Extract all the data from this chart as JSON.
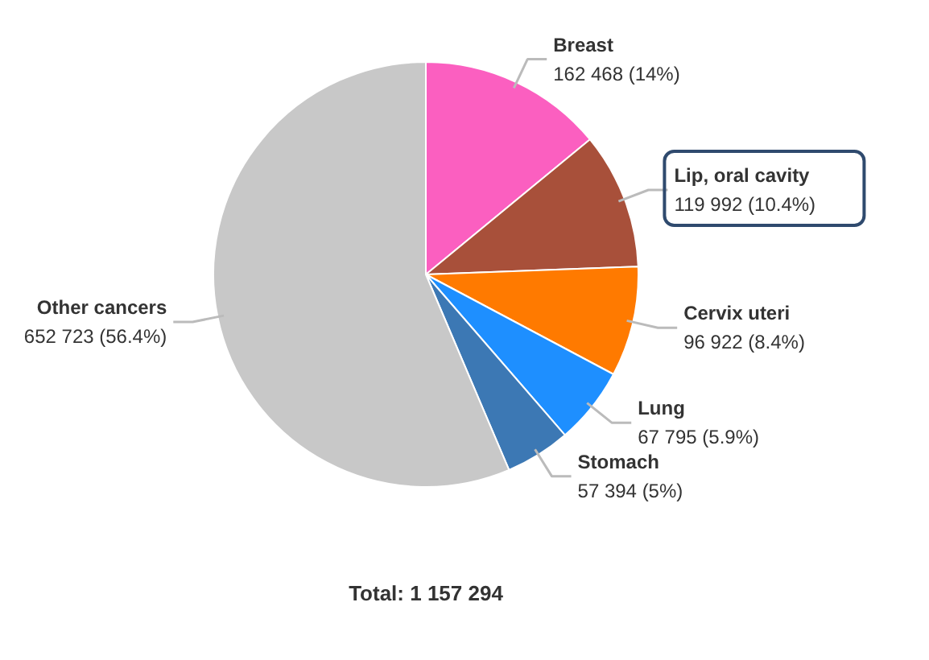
{
  "chart_data": {
    "type": "pie",
    "categories": [
      "Breast",
      "Lip, oral cavity",
      "Cervix uteri",
      "Lung",
      "Stomach",
      "Other cancers"
    ],
    "values": [
      162468,
      119992,
      96922,
      67795,
      57394,
      652723
    ],
    "value_labels": [
      "162 468 (14%)",
      "119 992 (10.4%)",
      "96 922 (8.4%)",
      "67 795 (5.9%)",
      "57 394 (5%)",
      "652 723 (56.4%)"
    ],
    "colors": [
      "#fb5fc0",
      "#a8503a",
      "#ff7a00",
      "#1e8fff",
      "#3c78b4",
      "#c8c8c8"
    ],
    "annotations": [
      "Total: 1 157 294"
    ]
  }
}
